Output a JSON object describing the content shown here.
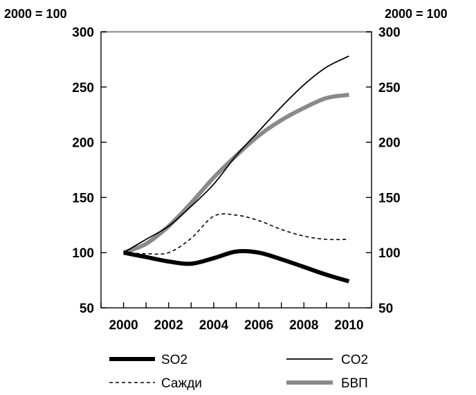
{
  "chart_data": {
    "type": "line",
    "title": "",
    "left_axis_unit": "2000 = 100",
    "right_axis_unit": "2000 = 100",
    "x_ticks": [
      "2000",
      "2002",
      "2004",
      "2006",
      "2008",
      "2010"
    ],
    "y_ticks": [
      "300",
      "250",
      "200",
      "150",
      "100",
      "50"
    ],
    "xlim": [
      1999,
      2011
    ],
    "ylim": [
      50,
      300
    ],
    "grid": false,
    "legend_position": "bottom",
    "series": [
      {
        "name": "SO2",
        "color": "#000000",
        "style": "thick-solid",
        "points": [
          [
            2000,
            100
          ],
          [
            2001,
            96
          ],
          [
            2002,
            92
          ],
          [
            2003,
            90
          ],
          [
            2004,
            95
          ],
          [
            2005,
            101
          ],
          [
            2006,
            100
          ],
          [
            2007,
            94
          ],
          [
            2008,
            87
          ],
          [
            2009,
            80
          ],
          [
            2010,
            74
          ]
        ]
      },
      {
        "name": "CO2",
        "color": "#000000",
        "style": "thin-solid",
        "points": [
          [
            2000,
            100
          ],
          [
            2001,
            112
          ],
          [
            2002,
            124
          ],
          [
            2003,
            142
          ],
          [
            2004,
            162
          ],
          [
            2005,
            188
          ],
          [
            2006,
            210
          ],
          [
            2007,
            232
          ],
          [
            2008,
            252
          ],
          [
            2009,
            268
          ],
          [
            2010,
            278
          ]
        ]
      },
      {
        "name": "Сажди",
        "color": "#000000",
        "style": "dashed",
        "points": [
          [
            2000,
            100
          ],
          [
            2001,
            99
          ],
          [
            2002,
            100
          ],
          [
            2003,
            113
          ],
          [
            2004,
            133
          ],
          [
            2005,
            134
          ],
          [
            2006,
            129
          ],
          [
            2007,
            121
          ],
          [
            2008,
            115
          ],
          [
            2009,
            112
          ],
          [
            2010,
            112
          ]
        ]
      },
      {
        "name": "БВП",
        "color": "#8a8a8a",
        "style": "thick-solid",
        "points": [
          [
            2000,
            100
          ],
          [
            2001,
            108
          ],
          [
            2002,
            124
          ],
          [
            2003,
            145
          ],
          [
            2004,
            168
          ],
          [
            2005,
            188
          ],
          [
            2006,
            206
          ],
          [
            2007,
            220
          ],
          [
            2008,
            231
          ],
          [
            2009,
            240
          ],
          [
            2010,
            243
          ]
        ]
      }
    ]
  }
}
